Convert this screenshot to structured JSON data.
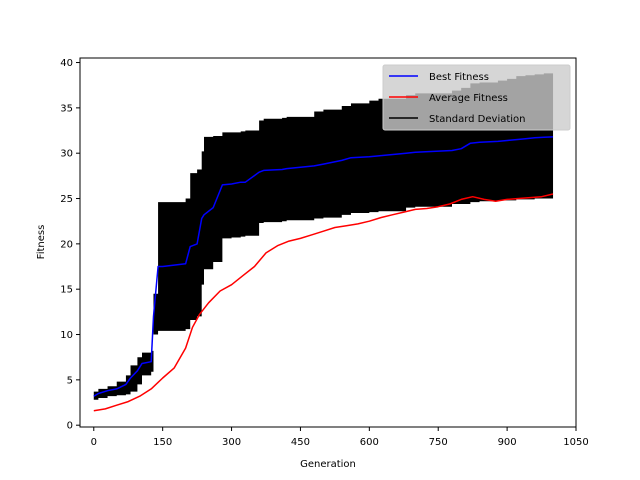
{
  "chart_data": {
    "type": "line",
    "title": "",
    "xlabel": "Generation",
    "ylabel": "Fitness",
    "xlim": [
      -30,
      1050
    ],
    "ylim": [
      -0.2,
      40.5
    ],
    "xticks": [
      0,
      150,
      300,
      450,
      600,
      750,
      900,
      1050
    ],
    "yticks": [
      0,
      5,
      10,
      15,
      20,
      25,
      30,
      35,
      40
    ],
    "grid": false,
    "legend_position": "top-right",
    "series": [
      {
        "name": "Best Fitness",
        "color": "#0000ff",
        "style": "line",
        "x": [
          0,
          10,
          30,
          50,
          70,
          80,
          95,
          105,
          125,
          130,
          140,
          150,
          200,
          210,
          225,
          235,
          240,
          260,
          280,
          300,
          320,
          330,
          360,
          370,
          410,
          420,
          480,
          500,
          540,
          560,
          600,
          620,
          680,
          700,
          780,
          800,
          820,
          840,
          880,
          900,
          920,
          940,
          960,
          980,
          1000
        ],
        "y": [
          3.2,
          3.5,
          3.8,
          4.0,
          4.5,
          5.2,
          6.0,
          6.8,
          7.0,
          12.0,
          17.5,
          17.5,
          17.8,
          19.7,
          20.0,
          22.8,
          23.2,
          24.0,
          26.5,
          26.6,
          26.8,
          26.8,
          27.9,
          28.1,
          28.2,
          28.3,
          28.6,
          28.8,
          29.2,
          29.5,
          29.6,
          29.7,
          30.0,
          30.1,
          30.3,
          30.5,
          31.1,
          31.2,
          31.3,
          31.4,
          31.5,
          31.6,
          31.7,
          31.75,
          31.8
        ]
      },
      {
        "name": "Average Fitness",
        "color": "#ff0000",
        "style": "line",
        "x": [
          0,
          25,
          50,
          75,
          100,
          125,
          150,
          175,
          200,
          215,
          230,
          250,
          275,
          300,
          325,
          350,
          375,
          400,
          425,
          450,
          475,
          500,
          525,
          550,
          575,
          600,
          625,
          650,
          675,
          700,
          725,
          750,
          775,
          800,
          825,
          850,
          875,
          900,
          925,
          950,
          975,
          1000
        ],
        "y": [
          1.6,
          1.8,
          2.2,
          2.6,
          3.2,
          4.0,
          5.2,
          6.3,
          8.5,
          10.8,
          12.2,
          13.5,
          14.8,
          15.5,
          16.5,
          17.5,
          19.0,
          19.8,
          20.3,
          20.6,
          21.0,
          21.4,
          21.8,
          22.0,
          22.2,
          22.5,
          22.9,
          23.2,
          23.5,
          23.8,
          23.9,
          24.1,
          24.4,
          24.9,
          25.2,
          24.9,
          24.7,
          24.9,
          25.0,
          25.1,
          25.2,
          25.5
        ]
      },
      {
        "name": "Standard Deviation",
        "color": "#000000",
        "style": "band",
        "x": [
          0,
          10,
          30,
          50,
          70,
          80,
          95,
          105,
          125,
          130,
          140,
          150,
          200,
          210,
          225,
          235,
          240,
          260,
          280,
          300,
          320,
          330,
          360,
          370,
          410,
          420,
          480,
          500,
          540,
          560,
          600,
          620,
          680,
          700,
          780,
          800,
          820,
          840,
          880,
          900,
          920,
          940,
          960,
          980,
          1000
        ],
        "upper": [
          3.7,
          4.0,
          4.3,
          4.8,
          5.5,
          6.6,
          7.5,
          8.0,
          8.2,
          14.5,
          24.6,
          24.6,
          25.0,
          27.8,
          28.2,
          30.2,
          31.8,
          31.9,
          32.3,
          32.3,
          32.4,
          32.5,
          33.6,
          33.8,
          33.9,
          34.0,
          34.6,
          34.8,
          35.2,
          35.5,
          35.8,
          36.0,
          36.4,
          36.6,
          36.9,
          37.2,
          37.7,
          37.8,
          38.0,
          38.2,
          38.5,
          38.6,
          38.7,
          38.8,
          38.9
        ],
        "lower": [
          2.8,
          3.0,
          3.2,
          3.3,
          3.4,
          3.7,
          4.5,
          5.5,
          5.9,
          10.0,
          10.4,
          10.4,
          10.6,
          11.6,
          12.0,
          15.5,
          17.2,
          18.0,
          20.6,
          20.7,
          20.8,
          20.9,
          22.3,
          22.4,
          22.5,
          22.6,
          22.8,
          22.9,
          23.2,
          23.4,
          23.5,
          23.6,
          24.0,
          24.1,
          24.4,
          24.4,
          24.6,
          24.7,
          24.8,
          24.8,
          24.9,
          24.9,
          25.0,
          25.0,
          25.0
        ]
      }
    ]
  }
}
